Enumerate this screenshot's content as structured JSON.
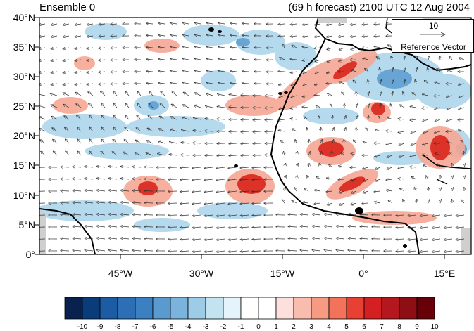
{
  "titles": {
    "left": "Ensemble 0",
    "right": "(69 h forecast) 2100 UTC 12 Aug 2004"
  },
  "axes": {
    "lat_labels": [
      "40°N",
      "35°N",
      "30°N",
      "25°N",
      "20°N",
      "15°N",
      "10°N",
      "5°N",
      "0°"
    ],
    "lon_labels": [
      "45°W",
      "30°W",
      "15°W",
      "0°",
      "15°E"
    ]
  },
  "reference_vector": {
    "magnitude": "10",
    "label": "Reference Vector"
  },
  "colorbar": {
    "labels": [
      "-10",
      "-9",
      "-8",
      "-7",
      "-6",
      "-5",
      "-4",
      "-3",
      "-2",
      "-1",
      "0",
      "1",
      "2",
      "3",
      "4",
      "5",
      "6",
      "7",
      "8",
      "9",
      "10"
    ],
    "colors": [
      "#08214f",
      "#0b3c7a",
      "#1c5ca4",
      "#2d6fb4",
      "#3b80c0",
      "#5a9bcf",
      "#7ab4dc",
      "#9dcce6",
      "#c4e3f1",
      "#e5f4fa",
      "#ffffff",
      "#ffffff",
      "#fde0dc",
      "#f9bdb0",
      "#f79a82",
      "#f3725a",
      "#e84133",
      "#d42023",
      "#b4171e",
      "#8e0e16",
      "#680009"
    ]
  },
  "map": {
    "extent": {
      "lon": [
        -60,
        20
      ],
      "lat": [
        0,
        40
      ]
    },
    "cool_color": "#a9d3ea",
    "warm_color": "#f6a794",
    "strong_warm_color": "#dc3228",
    "coast_color": "#000000"
  }
}
